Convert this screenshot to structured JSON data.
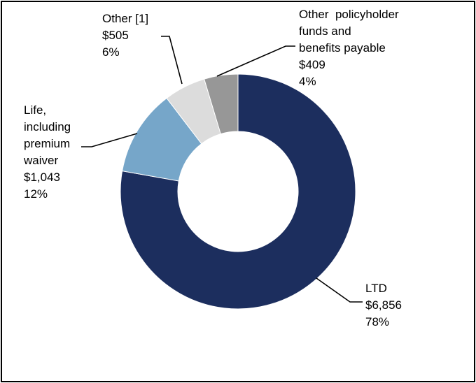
{
  "chart_data": {
    "type": "pie",
    "donut": true,
    "categories": [
      "LTD",
      "Life, including premium waiver",
      "Other [1]",
      "Other policyholder funds and benefits payable"
    ],
    "values": [
      6856,
      1043,
      505,
      409
    ],
    "value_labels": [
      "$6,856",
      "$1,043",
      "$505",
      "$409"
    ],
    "percent_labels": [
      "78%",
      "12%",
      "6%",
      "4%"
    ],
    "colors": [
      "#1c2e5e",
      "#76a6c9",
      "#dcdcdc",
      "#979797"
    ],
    "slices": [
      {
        "key": "ltd",
        "label_lines": [
          "LTD"
        ],
        "value": 6856,
        "value_label": "$6,856",
        "percent_label": "78%",
        "color": "#1c2e5e"
      },
      {
        "key": "life",
        "label_lines": [
          "Life,",
          "including",
          "premium",
          "waiver"
        ],
        "value": 1043,
        "value_label": "$1,043",
        "percent_label": "12%",
        "color": "#76a6c9"
      },
      {
        "key": "other",
        "label_lines": [
          "Other [1]"
        ],
        "value": 505,
        "value_label": "$505",
        "percent_label": "6%",
        "color": "#dcdcdc"
      },
      {
        "key": "policyholder",
        "label_lines": [
          "Other  policyholder",
          "funds and",
          "benefits payable"
        ],
        "value": 409,
        "value_label": "$409",
        "percent_label": "4%",
        "color": "#979797"
      }
    ],
    "legend": "none"
  }
}
